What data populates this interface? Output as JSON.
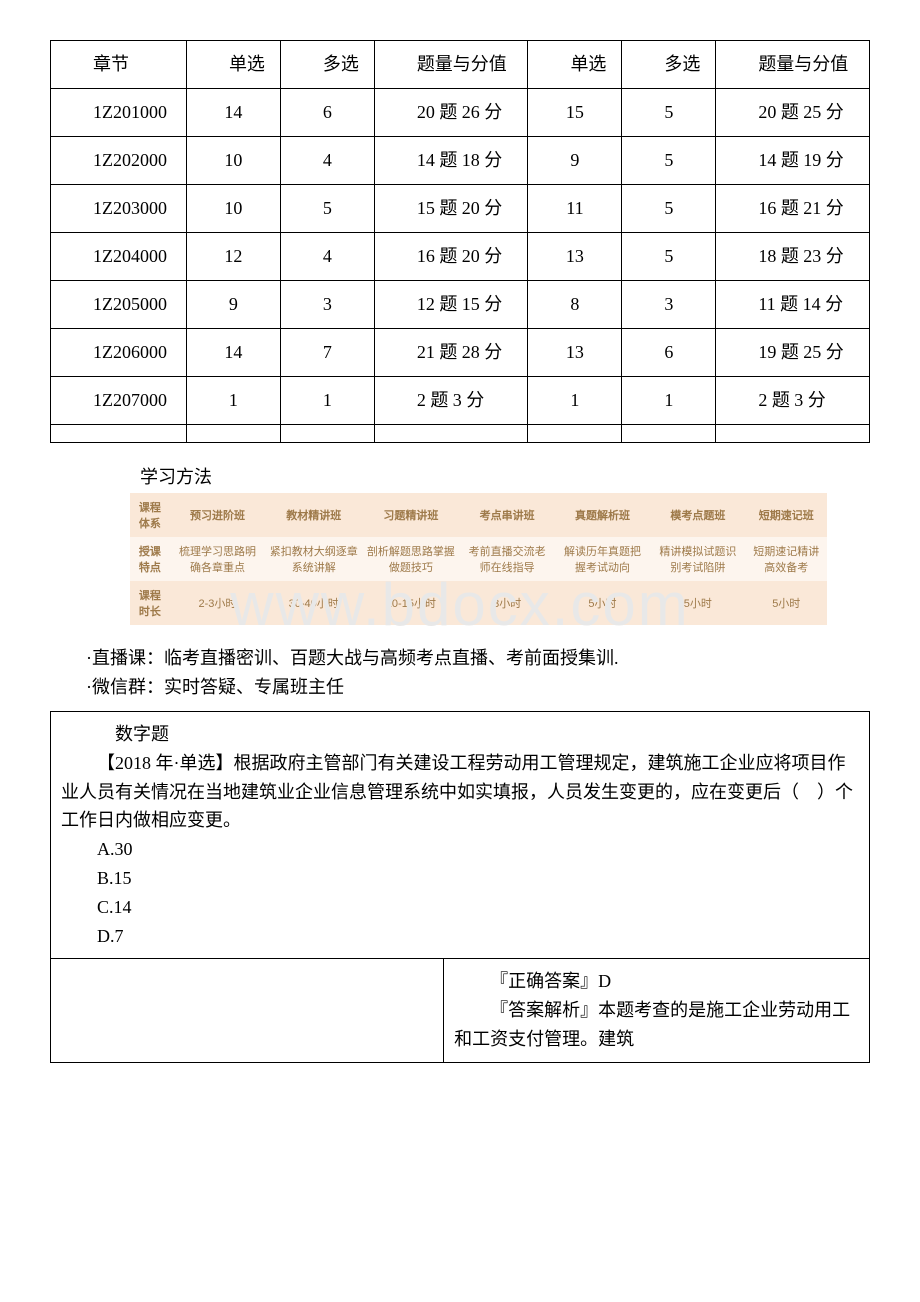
{
  "watermark": "www.bdocx.com",
  "table1": {
    "headers": [
      "章节",
      "单选",
      "多选",
      "题量与分值",
      "单选",
      "多选",
      "题量与分值"
    ],
    "rows": [
      {
        "chapter": "1Z201000",
        "c1": "14",
        "c2": "6",
        "q1": "20 题 26 分",
        "c3": "15",
        "c4": "5",
        "q2": "20 题 25 分"
      },
      {
        "chapter": "1Z202000",
        "c1": "10",
        "c2": "4",
        "q1": "14 题 18 分",
        "c3": "9",
        "c4": "5",
        "q2": "14 题 19 分"
      },
      {
        "chapter": "1Z203000",
        "c1": "10",
        "c2": "5",
        "q1": "15 题 20 分",
        "c3": "11",
        "c4": "5",
        "q2": "16 题 21 分"
      },
      {
        "chapter": "1Z204000",
        "c1": "12",
        "c2": "4",
        "q1": "16 题 20 分",
        "c3": "13",
        "c4": "5",
        "q2": "18 题 23 分"
      },
      {
        "chapter": "1Z205000",
        "c1": "9",
        "c2": "3",
        "q1": "12 题 15 分",
        "c3": "8",
        "c4": "3",
        "q2": "11 题 14 分"
      },
      {
        "chapter": "1Z206000",
        "c1": "14",
        "c2": "7",
        "q1": "21 题 28 分",
        "c3": "13",
        "c4": "6",
        "q2": "19 题 25 分"
      },
      {
        "chapter": "1Z207000",
        "c1": "1",
        "c2": "1",
        "q1": "2 题 3 分",
        "c3": "1",
        "c4": "1",
        "q2": "2 题 3 分"
      }
    ]
  },
  "study_title": "学习方法",
  "course_table": {
    "headers": [
      "课程体系",
      "预习进阶班",
      "教材精讲班",
      "习题精讲班",
      "考点串讲班",
      "真题解析班",
      "模考点题班",
      "短期速记班"
    ],
    "row1_label": "授课特点",
    "row1": [
      "梳理学习思路明确各章重点",
      "紧扣教材大纲逐章系统讲解",
      "剖析解题思路掌握做题技巧",
      "考前直播交流老师在线指导",
      "解读历年真题把握考试动向",
      "精讲模拟试题识别考试陷阱",
      "短期速记精讲高效备考"
    ],
    "row2_label": "课程时长",
    "row2": [
      "2-3小时",
      "30-40小时",
      "10-15小时",
      "3小时",
      "5小时",
      "5小时",
      "5小时"
    ]
  },
  "bullets": {
    "b1": "·直播课：临考直播密训、百题大战与高频考点直播、考前面授集训.",
    "b2": "·微信群：实时答疑、专属班主任"
  },
  "qa": {
    "title": "数字题",
    "question": "【2018 年·单选】根据政府主管部门有关建设工程劳动用工管理规定，建筑施工企业应将项目作业人员有关情况在当地建筑业企业信息管理系统中如实填报，人员发生变更的，应在变更后（　）个工作日内做相应变更。",
    "optA": "A.30",
    "optB": "B.15",
    "optC": "C.14",
    "optD": "D.7",
    "answer_label": "『正确答案』D",
    "analysis": "『答案解析』本题考查的是施工企业劳动用工和工资支付管理。建筑"
  }
}
